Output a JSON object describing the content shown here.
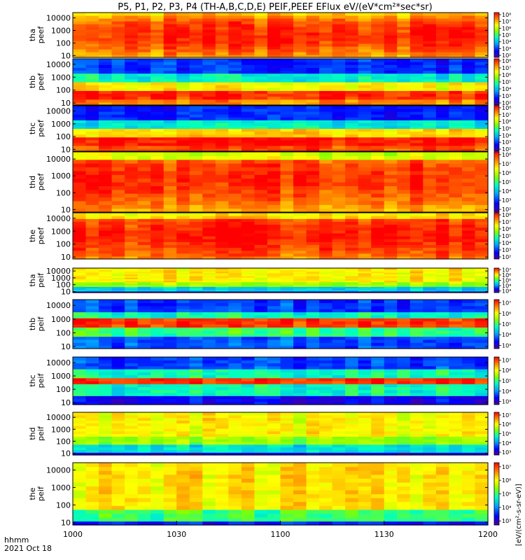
{
  "title": "P5, P1, P2, P3, P4 (TH-A,B,C,D,E) PEIF,PEEF EFlux eV/(eV*cm²*sec*sr)",
  "time_labels": {
    "line1": "hhmm",
    "line2": "2021 Oct 18"
  },
  "colorbar_label": "[eV/(cm²-s-sr-eV)]",
  "chart_data": [
    {
      "type": "heatmap",
      "title": "P5, P1, P2, P3, P4 (TH-A,B,C,D,E) PEIF,PEEF EFlux eV/(eV*cm²*sec*sr)",
      "x_ticks": [
        "1000",
        "1030",
        "1100",
        "1130",
        "1200"
      ],
      "y_scale": "log",
      "y_ticks": [
        "10",
        "100",
        "1000",
        "10000"
      ],
      "panels": [
        {
          "ylabel": [
            "tha",
            "peef"
          ],
          "cbar_ticks": [
            "10²",
            "10³",
            "10⁴",
            "10⁵",
            "10⁶",
            "10⁷",
            "10⁸"
          ]
        },
        {
          "ylabel": [
            "thb",
            "peef"
          ],
          "cbar_ticks": [
            "10²",
            "10³",
            "10⁴",
            "10⁵",
            "10⁶",
            "10⁷",
            "10⁸"
          ]
        },
        {
          "ylabel": [
            "thc",
            "peef"
          ],
          "cbar_ticks": [
            "10²",
            "10³",
            "10⁴",
            "10⁵",
            "10⁶",
            "10⁷",
            "10⁸"
          ]
        },
        {
          "ylabel": [
            "thd",
            "peef"
          ],
          "cbar_ticks": [
            "10²",
            "10³",
            "10⁴",
            "10⁵",
            "10⁶",
            "10⁷",
            "10⁸"
          ]
        },
        {
          "ylabel": [
            "the",
            "peef"
          ],
          "cbar_ticks": [
            "10²",
            "10³",
            "10⁴",
            "10⁵",
            "10⁶",
            "10⁷",
            "10⁸"
          ]
        },
        {
          "ylabel": [
            "tha",
            "peif"
          ],
          "cbar_ticks": [
            "10³",
            "10⁴",
            "10⁵",
            "10⁶",
            "10⁷"
          ]
        },
        {
          "ylabel": [
            "thb",
            "peif"
          ],
          "cbar_ticks": [
            "10³",
            "10⁴",
            "10⁵",
            "10⁶",
            "10⁷"
          ]
        },
        {
          "ylabel": [
            "thc",
            "peif"
          ],
          "cbar_ticks": [
            "10³",
            "10⁴",
            "10⁵",
            "10⁶",
            "10⁷"
          ]
        },
        {
          "ylabel": [
            "thd",
            "peif"
          ],
          "cbar_ticks": [
            "10³",
            "10⁴",
            "10⁵",
            "10⁶",
            "10⁷"
          ]
        },
        {
          "ylabel": [
            "the",
            "peif"
          ],
          "cbar_ticks": [
            "10³",
            "10⁴",
            "10⁵",
            "10⁶",
            "10⁷"
          ]
        }
      ]
    }
  ]
}
